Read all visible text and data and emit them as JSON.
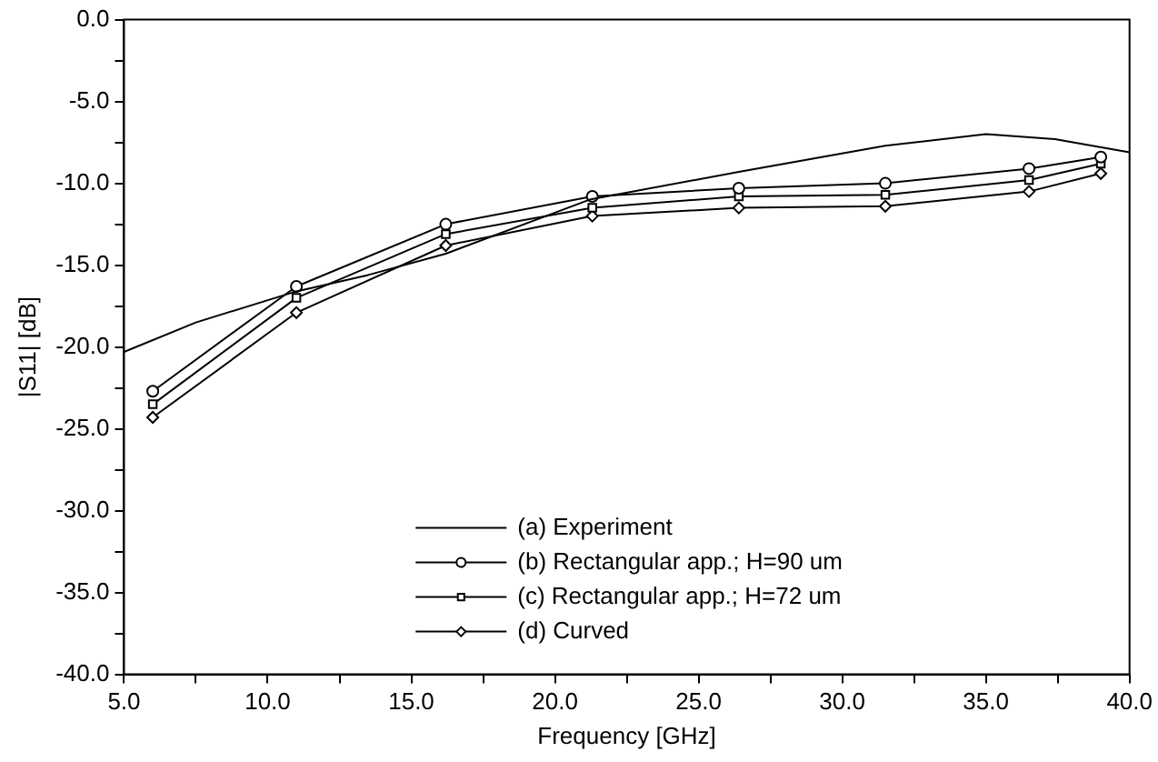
{
  "chart_data": {
    "type": "line",
    "xlabel": "Frequency [GHz]",
    "ylabel": "|S11| [dB]",
    "xlim": [
      5,
      40
    ],
    "ylim": [
      -40,
      0
    ],
    "xticks": [
      {
        "value": 5,
        "label": "5.0"
      },
      {
        "value": 7.5,
        "label": null
      },
      {
        "value": 10,
        "label": "10.0"
      },
      {
        "value": 12.5,
        "label": null
      },
      {
        "value": 15,
        "label": "15.0"
      },
      {
        "value": 17.5,
        "label": null
      },
      {
        "value": 20,
        "label": "20.0"
      },
      {
        "value": 22.5,
        "label": null
      },
      {
        "value": 25,
        "label": "25.0"
      },
      {
        "value": 27.5,
        "label": null
      },
      {
        "value": 30,
        "label": "30.0"
      },
      {
        "value": 32.5,
        "label": null
      },
      {
        "value": 35,
        "label": "35.0"
      },
      {
        "value": 37.5,
        "label": null
      },
      {
        "value": 40,
        "label": "40.0"
      }
    ],
    "yticks": [
      {
        "value": -40,
        "label": "-40.0"
      },
      {
        "value": -37.5,
        "label": null
      },
      {
        "value": -35,
        "label": "-35.0"
      },
      {
        "value": -32.5,
        "label": null
      },
      {
        "value": -30,
        "label": "-30.0"
      },
      {
        "value": -27.5,
        "label": null
      },
      {
        "value": -25,
        "label": "-25.0"
      },
      {
        "value": -22.5,
        "label": null
      },
      {
        "value": -20,
        "label": "-20.0"
      },
      {
        "value": -17.5,
        "label": null
      },
      {
        "value": -15,
        "label": "-15.0"
      },
      {
        "value": -12.5,
        "label": null
      },
      {
        "value": -10,
        "label": "-10.0"
      },
      {
        "value": -7.5,
        "label": null
      },
      {
        "value": -5,
        "label": "-5.0"
      },
      {
        "value": -2.5,
        "label": null
      },
      {
        "value": 0,
        "label": "0.0"
      }
    ],
    "grid": false,
    "legend": "bottom",
    "line_style": "solid",
    "series": [
      {
        "name": "(a) Experiment",
        "color": "#000000",
        "marker": "none",
        "x": [
          5,
          7.5,
          11,
          13.5,
          16.2,
          21.2,
          26.4,
          31.5,
          35,
          37.4,
          40
        ],
        "values": [
          -20.3,
          -18.5,
          -16.6,
          -15.6,
          -14.3,
          -11.0,
          -9.3,
          -7.7,
          -7.0,
          -7.3,
          -8.1
        ]
      },
      {
        "name": "(b) Rectangular app.; H=90 um",
        "color": "#000000",
        "marker": "circle",
        "x": [
          6,
          11,
          16.2,
          21.3,
          26.4,
          31.5,
          36.5,
          39
        ],
        "values": [
          -22.7,
          -16.3,
          -12.5,
          -10.8,
          -10.3,
          -10.0,
          -9.1,
          -8.4
        ]
      },
      {
        "name": "(c) Rectangular app.; H=72 um",
        "color": "#000000",
        "marker": "square",
        "x": [
          6,
          11,
          16.2,
          21.3,
          26.4,
          31.5,
          36.5,
          39
        ],
        "values": [
          -23.5,
          -17.0,
          -13.1,
          -11.5,
          -10.8,
          -10.7,
          -9.8,
          -8.8
        ]
      },
      {
        "name": "(d) Curved",
        "color": "#000000",
        "marker": "diamond",
        "x": [
          6,
          11,
          16.2,
          21.3,
          26.4,
          31.5,
          36.5,
          39
        ],
        "values": [
          -24.3,
          -17.9,
          -13.8,
          -12.0,
          -11.5,
          -11.4,
          -10.5,
          -9.4
        ]
      }
    ]
  }
}
